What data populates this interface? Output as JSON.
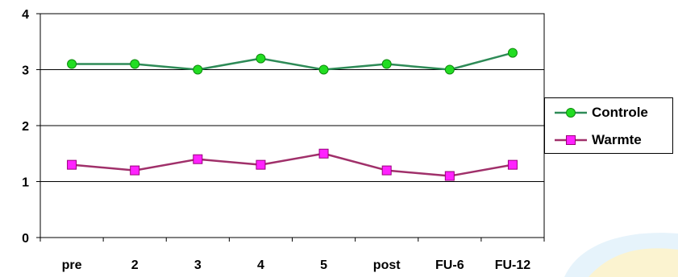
{
  "chart_data": {
    "type": "line",
    "categories": [
      "pre",
      "2",
      "3",
      "4",
      "5",
      "post",
      "FU-6",
      "FU-12"
    ],
    "series": [
      {
        "name": "Controle",
        "values": [
          3.1,
          3.1,
          3.0,
          3.2,
          3.0,
          3.1,
          3.0,
          3.3
        ],
        "color": "#2e8b57",
        "marker": "circle",
        "marker_color": "#22dd22"
      },
      {
        "name": "Warmte",
        "values": [
          1.3,
          1.2,
          1.4,
          1.3,
          1.5,
          1.2,
          1.1,
          1.3
        ],
        "color": "#a0306a",
        "marker": "square",
        "marker_color": "#ff22ff"
      }
    ],
    "ylim": [
      0,
      4
    ],
    "yticks": [
      "0",
      "1",
      "2",
      "3",
      "4"
    ],
    "grid": true,
    "legend_position": "right",
    "title": "",
    "xlabel": "",
    "ylabel": ""
  }
}
